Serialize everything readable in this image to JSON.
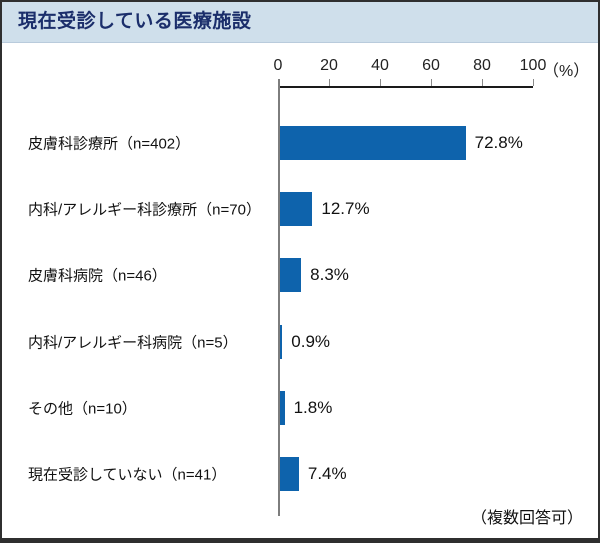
{
  "header": {
    "title": "現在受診している医療施設"
  },
  "note": "（複数回答可）",
  "colors": {
    "header_bg": "#cfdfeb",
    "title_text": "#1b2e6b",
    "bar": "#0e63ac",
    "axis_vline": "#7d7d7d",
    "axis_hline": "#1a1a1a",
    "text": "#111111"
  },
  "chart_data": {
    "type": "bar",
    "orientation": "horizontal",
    "title": "現在受診している医療施設",
    "categories": [
      "皮膚科診療所（n=402）",
      "内科/アレルギー科診療所（n=70）",
      "皮膚科病院（n=46）",
      "内科/アレルギー科病院（n=5）",
      "その他（n=10）",
      "現在受診していない（n=41）"
    ],
    "values": [
      72.8,
      12.7,
      8.3,
      0.9,
      1.8,
      7.4
    ],
    "value_labels": [
      "72.8%",
      "12.7%",
      "8.3%",
      "0.9%",
      "1.8%",
      "7.4%"
    ],
    "x_ticks": [
      0,
      20,
      40,
      60,
      80,
      100
    ],
    "x_tick_labels": [
      "0",
      "20",
      "40",
      "60",
      "80",
      "100"
    ],
    "xlim": [
      0,
      100
    ],
    "axis_unit": "（%）",
    "grid": false,
    "legend": false,
    "annotation": "（複数回答可）",
    "bar_color": "#0e63ac"
  }
}
